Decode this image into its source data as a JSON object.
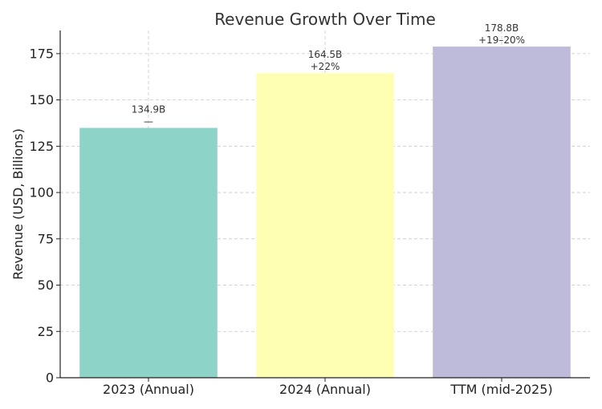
{
  "chart_data": {
    "type": "bar",
    "title": "Revenue Growth Over Time",
    "xlabel": "",
    "ylabel": "Revenue (USD, Billions)",
    "ylim": [
      0,
      187.5
    ],
    "yticks": [
      0,
      25,
      50,
      75,
      100,
      125,
      150,
      175
    ],
    "grid": true,
    "categories": [
      "2023 (Annual)",
      "2024 (Annual)",
      "TTM (mid-2025)"
    ],
    "values": [
      134.9,
      164.5,
      178.8
    ],
    "value_labels": [
      "134.9B",
      "164.5B",
      "178.8B"
    ],
    "growth_labels": [
      "—",
      "+22%",
      "+19–20%"
    ],
    "colors": [
      "#8dd3c7",
      "#ffffb3",
      "#bebada"
    ]
  }
}
